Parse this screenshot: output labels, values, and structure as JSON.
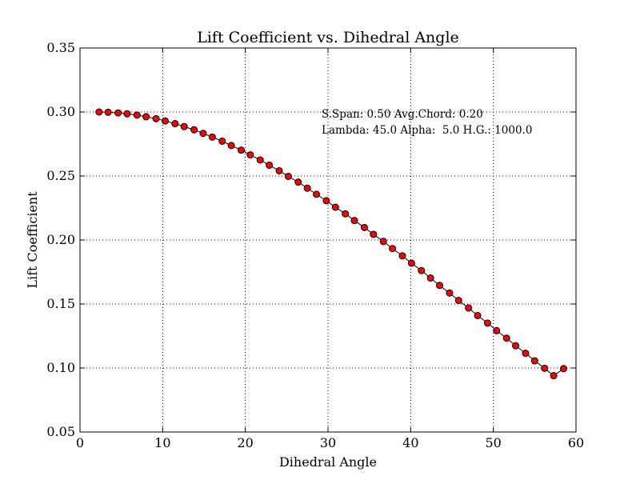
{
  "chart_data": {
    "type": "line",
    "title": "Lift Coefficient vs. Dihedral Angle",
    "xlabel": "Dihedral Angle",
    "ylabel": "Lift Coefficient",
    "xlim": [
      0,
      60
    ],
    "ylim": [
      0.05,
      0.35
    ],
    "xticks": [
      "0",
      "10",
      "20",
      "30",
      "40",
      "50",
      "60"
    ],
    "yticks": [
      "0.05",
      "0.10",
      "0.15",
      "0.20",
      "0.25",
      "0.30",
      "0.35"
    ],
    "grid": true,
    "marker": "circle",
    "line_color": "#000000",
    "marker_color": "#ff0000",
    "annotation": {
      "line1": "S.Span: 0.50 Avg.Chord: 0.20",
      "line2": "Lambda: 45.0 Alpha:  5.0 H.G.: 1000.0"
    },
    "series": [
      {
        "x": [
          2.3,
          3.4,
          4.6,
          5.7,
          6.9,
          8.0,
          9.2,
          10.3,
          11.5,
          12.6,
          13.8,
          14.9,
          16.0,
          17.2,
          18.3,
          19.5,
          20.6,
          21.8,
          22.9,
          24.1,
          25.2,
          26.4,
          27.5,
          28.6,
          29.8,
          30.9,
          32.1,
          33.2,
          34.4,
          35.5,
          36.7,
          37.8,
          39.0,
          40.1,
          41.3,
          42.4,
          43.5,
          44.7,
          45.8,
          47.0,
          48.1,
          49.3,
          50.4,
          51.6,
          52.7,
          53.9,
          55.0,
          56.2,
          57.3,
          58.5
        ],
        "y": [
          0.3,
          0.2998,
          0.2993,
          0.2986,
          0.2976,
          0.2963,
          0.2948,
          0.293,
          0.2909,
          0.2886,
          0.2861,
          0.2833,
          0.2804,
          0.2772,
          0.2738,
          0.2702,
          0.2665,
          0.2625,
          0.2584,
          0.2541,
          0.2497,
          0.2452,
          0.2405,
          0.2357,
          0.2307,
          0.2256,
          0.2205,
          0.2152,
          0.2098,
          0.2044,
          0.1989,
          0.1933,
          0.1876,
          0.1819,
          0.1761,
          0.1703,
          0.1645,
          0.1586,
          0.1528,
          0.1469,
          0.141,
          0.1351,
          0.1292,
          0.1233,
          0.1174,
          0.1115,
          0.1056,
          0.0998,
          0.094,
          0.0995
        ]
      }
    ]
  }
}
